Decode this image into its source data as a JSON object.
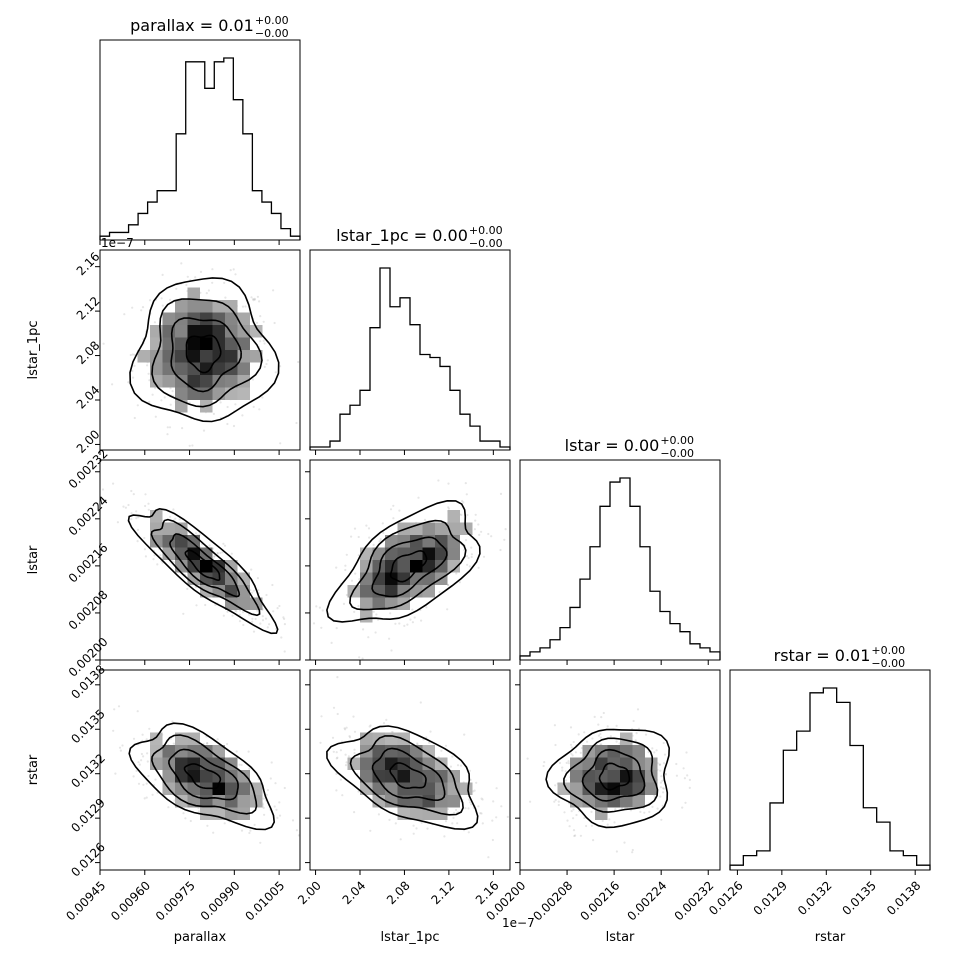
{
  "chart_data": {
    "type": "corner",
    "params": [
      "parallax",
      "lstar_1pc",
      "lstar",
      "rstar"
    ],
    "titles": [
      {
        "param": "parallax",
        "text": "parallax = 0.01",
        "sup": "+0.00",
        "sub": "−0.00"
      },
      {
        "param": "lstar_1pc",
        "text": "lstar_1pc = 0.00",
        "sup": "+0.00",
        "sub": "−0.00"
      },
      {
        "param": "lstar",
        "text": "lstar = 0.00",
        "sup": "+0.00",
        "sub": "−0.00"
      },
      {
        "param": "rstar",
        "text": "rstar = 0.01",
        "sup": "+0.00",
        "sub": "−0.00"
      }
    ],
    "ranges": [
      [
        0.00945,
        0.01012
      ],
      [
        1.995e-07,
        2.175e-07
      ],
      [
        0.002,
        0.00234
      ],
      [
        0.01255,
        0.0139
      ]
    ],
    "ticks": [
      {
        "values": [
          0.00945,
          0.0096,
          0.00975,
          0.0099,
          0.01005
        ],
        "labels": [
          "0.00945",
          "0.00960",
          "0.00975",
          "0.00990",
          "0.01005"
        ]
      },
      {
        "values": [
          2e-07,
          2.04e-07,
          2.08e-07,
          2.12e-07,
          2.16e-07
        ],
        "labels": [
          "2.00",
          "2.04",
          "2.08",
          "2.12",
          "2.16"
        ],
        "offset": "1e−7"
      },
      {
        "values": [
          0.002,
          0.00208,
          0.00216,
          0.00224,
          0.00232
        ],
        "labels": [
          "0.00200",
          "0.00208",
          "0.00216",
          "0.00224",
          "0.00232"
        ]
      },
      {
        "values": [
          0.0126,
          0.0129,
          0.0132,
          0.0135,
          0.0138
        ],
        "labels": [
          "0.0126",
          "0.0129",
          "0.0132",
          "0.0135",
          "0.0138"
        ]
      }
    ],
    "axis_labels": [
      "parallax",
      "lstar_1pc",
      "lstar",
      "rstar"
    ],
    "histograms": [
      [
        1,
        2,
        2,
        4,
        7,
        10,
        13,
        13,
        28,
        47,
        47,
        40,
        47,
        48,
        37,
        28,
        13,
        10,
        7,
        3,
        1
      ],
      [
        1,
        1,
        3,
        12,
        15,
        20,
        41,
        61,
        48,
        51,
        42,
        32,
        31,
        28,
        20,
        12,
        8,
        3,
        3,
        1
      ],
      [
        1,
        2,
        3,
        5,
        8,
        13,
        20,
        28,
        38,
        44,
        45,
        38,
        28,
        17,
        12,
        9,
        7,
        4,
        3,
        2
      ],
      [
        1,
        3,
        4,
        14,
        25,
        29,
        37,
        38,
        35,
        26,
        13,
        10,
        4,
        3,
        1
      ]
    ],
    "pairs": [
      {
        "x": 0,
        "y": 1,
        "mean": [
          0.009795,
          2.083e-07
        ],
        "sd": [
          0.000115,
          3.2e-09
        ],
        "rho": 0.0
      },
      {
        "x": 0,
        "y": 2,
        "mean": [
          0.009795,
          0.00216
        ],
        "sd": [
          0.000115,
          5e-05
        ],
        "rho": -0.85
      },
      {
        "x": 1,
        "y": 2,
        "mean": [
          2.083e-07,
          0.00216
        ],
        "sd": [
          3.2e-09,
          5e-05
        ],
        "rho": 0.55
      },
      {
        "x": 0,
        "y": 3,
        "mean": [
          0.009795,
          0.01318
        ],
        "sd": [
          0.000115,
          0.000165
        ],
        "rho": -0.55
      },
      {
        "x": 1,
        "y": 3,
        "mean": [
          2.083e-07,
          0.01318
        ],
        "sd": [
          3.2e-09,
          0.000165
        ],
        "rho": -0.45
      },
      {
        "x": 2,
        "y": 3,
        "mean": [
          0.00216,
          0.01318
        ],
        "sd": [
          5e-05,
          0.000165
        ],
        "rho": 0.05
      }
    ],
    "contour_levels_sigma": [
      0.5,
      1.0,
      1.5,
      2.0
    ],
    "grid": false
  }
}
